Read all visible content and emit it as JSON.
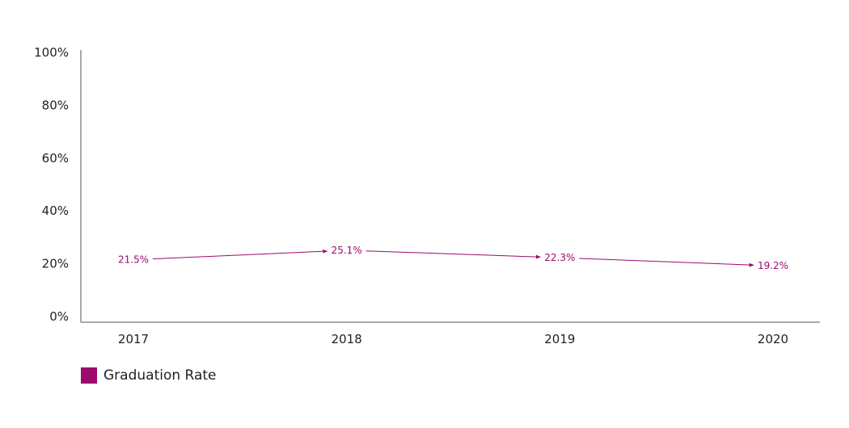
{
  "chart_data": {
    "type": "line",
    "title": "",
    "xlabel": "",
    "ylabel": "",
    "categories": [
      "2017",
      "2018",
      "2019",
      "2020"
    ],
    "series": [
      {
        "name": "Graduation Rate",
        "values": [
          21.5,
          25.1,
          22.3,
          19.2
        ],
        "data_labels": [
          "21.5%",
          "25.1%",
          "22.3%",
          "19.2%"
        ],
        "color": "#9b0a6c"
      }
    ],
    "ylim": [
      0,
      100
    ],
    "yticks": [
      0,
      20,
      40,
      60,
      80,
      100
    ],
    "ytick_labels": [
      "0%",
      "20%",
      "40%",
      "60%",
      "80%",
      "100%"
    ],
    "grid": false,
    "legend_position": "bottom-left"
  },
  "legend": {
    "label": "Graduation Rate",
    "color": "#9b0a6c"
  }
}
